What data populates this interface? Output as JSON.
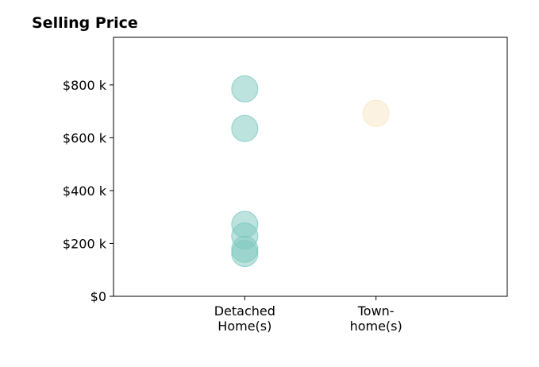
{
  "chart_data": {
    "type": "scatter",
    "title": "Selling Price",
    "xlabel": "",
    "ylabel": "",
    "categories": [
      [
        "Detached",
        "Home(s)"
      ],
      [
        "Town-",
        "home(s)"
      ]
    ],
    "y_ticks": [
      {
        "value": 0,
        "label": "$0"
      },
      {
        "value": 200,
        "label": "$200 k"
      },
      {
        "value": 400,
        "label": "$400 k"
      },
      {
        "value": 600,
        "label": "$600 k"
      },
      {
        "value": 800,
        "label": "$800 k"
      }
    ],
    "ylim": [
      0,
      980
    ],
    "x_range": [
      0,
      3
    ],
    "grid": false,
    "series": [
      {
        "category_index": 0,
        "color": "#7cc7be",
        "values": [
          785,
          635,
          272,
          228,
          178,
          162
        ]
      },
      {
        "category_index": 1,
        "color": "#f7e6c4",
        "values": [
          692
        ]
      }
    ]
  }
}
